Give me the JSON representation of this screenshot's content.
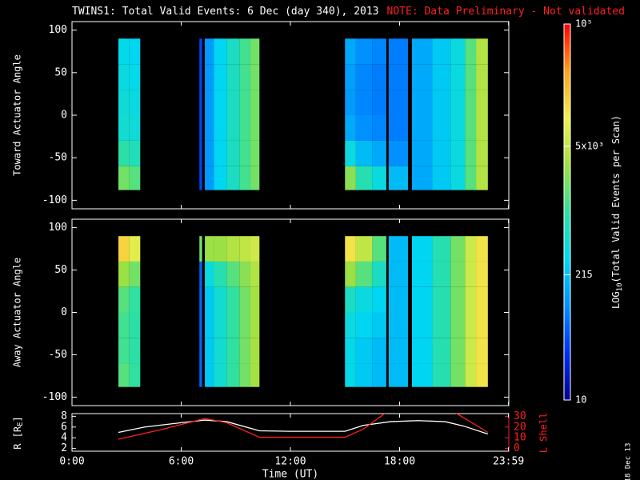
{
  "title": "TWINS1: Total Valid Events:  6 Dec (day 340), 2013",
  "note": "NOTE: Data Preliminary - Not validated",
  "stamp": "18 Dec 13",
  "chart_data": [
    {
      "type": "heatmap",
      "ylabel": "Toward Actuator Angle",
      "ylim": [
        -110,
        110
      ],
      "yticks": [
        100,
        50,
        0,
        -50,
        -100
      ],
      "xlim": [
        0,
        24
      ],
      "angle_edges": [
        90,
        60,
        30,
        0,
        -30,
        -60,
        -88
      ],
      "zlim": [
        10,
        100000
      ],
      "zlog": true,
      "zlabel": [
        "LOG",
        "10",
        "(Total Valid Events per Scan)"
      ],
      "zticks": [
        10,
        215,
        {
          "value": 5000,
          "label": "5x10³"
        },
        {
          "value": 100000,
          "label": "10⁵"
        }
      ],
      "colorscale": [
        "#000090",
        "#0030f0",
        "#0090ff",
        "#00d8f0",
        "#30e0a0",
        "#a0e040",
        "#f0f050",
        "#ffa020",
        "#ff0000"
      ],
      "columns": [
        {
          "start": 2.55,
          "end": 3.15,
          "values": [
            350,
            400,
            450,
            500,
            900,
            2000
          ]
        },
        {
          "start": 3.15,
          "end": 3.75,
          "values": [
            300,
            350,
            400,
            450,
            700,
            1500
          ]
        },
        {
          "start": 7.0,
          "end": 7.15,
          "values": [
            40,
            40,
            40,
            40,
            40,
            40
          ]
        },
        {
          "start": 7.3,
          "end": 7.8,
          "values": [
            120,
            120,
            120,
            120,
            120,
            120
          ]
        },
        {
          "start": 7.8,
          "end": 8.5,
          "values": [
            300,
            300,
            300,
            300,
            300,
            300
          ]
        },
        {
          "start": 8.5,
          "end": 9.2,
          "values": [
            600,
            600,
            600,
            600,
            600,
            600
          ]
        },
        {
          "start": 9.2,
          "end": 9.8,
          "values": [
            1200,
            1200,
            1200,
            1200,
            1200,
            1200
          ]
        },
        {
          "start": 9.8,
          "end": 10.3,
          "values": [
            2000,
            2000,
            2000,
            2000,
            2000,
            2000
          ]
        },
        {
          "start": 15.0,
          "end": 15.6,
          "values": [
            150,
            130,
            120,
            150,
            400,
            2500
          ]
        },
        {
          "start": 15.6,
          "end": 16.5,
          "values": [
            100,
            90,
            90,
            100,
            200,
            800
          ]
        },
        {
          "start": 16.5,
          "end": 17.27,
          "values": [
            90,
            80,
            80,
            90,
            150,
            400
          ]
        },
        {
          "start": 17.4,
          "end": 18.46,
          "values": [
            80,
            80,
            80,
            80,
            100,
            200
          ]
        },
        {
          "start": 18.68,
          "end": 19.8,
          "values": [
            150,
            150,
            150,
            150,
            150,
            150
          ]
        },
        {
          "start": 19.8,
          "end": 20.8,
          "values": [
            250,
            250,
            250,
            250,
            250,
            250
          ]
        },
        {
          "start": 20.8,
          "end": 21.6,
          "values": [
            400,
            400,
            400,
            400,
            400,
            400
          ]
        },
        {
          "start": 21.6,
          "end": 22.2,
          "values": [
            1500,
            1500,
            1500,
            1500,
            1500,
            1500
          ]
        },
        {
          "start": 22.2,
          "end": 22.85,
          "values": [
            4000,
            4000,
            4000,
            4000,
            4000,
            4000
          ]
        }
      ]
    },
    {
      "type": "heatmap",
      "ylabel": "Away Actuator Angle",
      "ylim": [
        -110,
        110
      ],
      "yticks": [
        100,
        50,
        0,
        -50,
        -100
      ],
      "xlim": [
        0,
        24
      ],
      "angle_edges": [
        90,
        60,
        30,
        0,
        -30,
        -60,
        -88
      ],
      "columns": [
        {
          "start": 2.55,
          "end": 3.15,
          "values": [
            15000,
            3000,
            1500,
            1200,
            1200,
            1500
          ]
        },
        {
          "start": 3.15,
          "end": 3.75,
          "values": [
            8000,
            2000,
            1000,
            900,
            900,
            1000
          ]
        },
        {
          "start": 7.0,
          "end": 7.15,
          "values": [
            2000,
            60,
            60,
            60,
            60,
            60
          ]
        },
        {
          "start": 7.3,
          "end": 7.8,
          "values": [
            3000,
            400,
            250,
            250,
            250,
            250
          ]
        },
        {
          "start": 7.8,
          "end": 8.5,
          "values": [
            3000,
            800,
            500,
            500,
            500,
            500
          ]
        },
        {
          "start": 8.5,
          "end": 9.2,
          "values": [
            4000,
            1500,
            1000,
            1000,
            1000,
            1000
          ]
        },
        {
          "start": 9.2,
          "end": 9.8,
          "values": [
            5000,
            2500,
            2000,
            2000,
            2000,
            2000
          ]
        },
        {
          "start": 9.8,
          "end": 10.3,
          "values": [
            6000,
            4000,
            3500,
            3500,
            3500,
            3500
          ]
        },
        {
          "start": 15.0,
          "end": 15.6,
          "values": [
            12000,
            3000,
            600,
            400,
            350,
            350
          ]
        },
        {
          "start": 15.6,
          "end": 16.5,
          "values": [
            5000,
            1500,
            400,
            300,
            250,
            250
          ]
        },
        {
          "start": 16.5,
          "end": 17.27,
          "values": [
            1500,
            600,
            300,
            250,
            200,
            200
          ]
        },
        {
          "start": 17.4,
          "end": 18.46,
          "values": [
            200,
            200,
            200,
            200,
            200,
            200
          ]
        },
        {
          "start": 18.68,
          "end": 19.8,
          "values": [
            300,
            300,
            300,
            300,
            300,
            300
          ]
        },
        {
          "start": 19.8,
          "end": 20.8,
          "values": [
            800,
            800,
            800,
            800,
            800,
            800
          ]
        },
        {
          "start": 20.8,
          "end": 21.6,
          "values": [
            2000,
            2000,
            2000,
            2000,
            2000,
            2000
          ]
        },
        {
          "start": 21.6,
          "end": 22.2,
          "values": [
            6000,
            6000,
            6000,
            6000,
            6000,
            6000
          ]
        },
        {
          "start": 22.2,
          "end": 22.85,
          "values": [
            12000,
            12000,
            12000,
            12000,
            12000,
            12000
          ]
        }
      ]
    },
    {
      "type": "line",
      "xlabel": "Time (UT)",
      "ylabel": [
        "R [R",
        "E",
        "]"
      ],
      "y2label": "L Shell",
      "xlim": [
        0,
        24
      ],
      "xticks": [
        {
          "value": 0,
          "label": "0:00"
        },
        {
          "value": 6,
          "label": "6:00"
        },
        {
          "value": 12,
          "label": "12:00"
        },
        {
          "value": 18,
          "label": "18:00"
        },
        {
          "value": 23.983,
          "label": "23:59"
        }
      ],
      "ylim": [
        1.5,
        8.5
      ],
      "yticks": [
        8,
        6,
        4,
        2
      ],
      "y2lim": [
        -2.5,
        32.5
      ],
      "y2ticks": [
        30,
        20,
        10,
        0
      ],
      "series": [
        {
          "color": "#ffffff",
          "x": [
            2.55,
            4,
            6,
            7.3,
            8.5,
            10.3,
            12,
            15,
            16,
            17.5,
            19,
            20.5,
            21.5,
            22.85
          ],
          "values": [
            5.0,
            6.0,
            6.8,
            7.3,
            7.0,
            5.3,
            5.2,
            5.2,
            6.3,
            7.0,
            7.2,
            7.0,
            6.2,
            4.7
          ]
        },
        {
          "color": "#ff2020",
          "axis": "y2",
          "x": [
            2.55,
            5,
            7.3,
            8.5,
            10.3,
            15,
            16,
            17.3,
            19,
            21,
            22.85
          ],
          "values": [
            8.7,
            18,
            28,
            24,
            10.5,
            10.5,
            18,
            34,
            null,
            34,
            15
          ]
        }
      ]
    }
  ]
}
